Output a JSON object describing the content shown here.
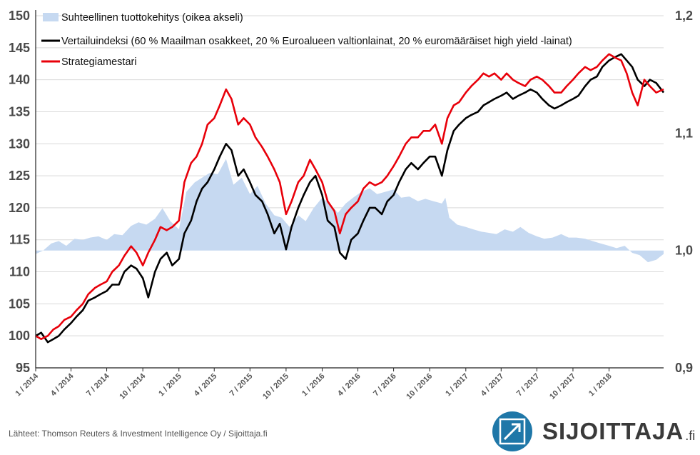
{
  "chart_data": {
    "type": "line",
    "title": "",
    "x_ticks": [
      "1 / 2014",
      "4 / 2014",
      "7 / 2014",
      "10 / 2014",
      "1 / 2015",
      "4 / 2015",
      "7 / 2015",
      "10 / 2015",
      "1 / 2016",
      "4 / 2016",
      "7 / 2016",
      "10 / 2016",
      "1 / 2017",
      "4 / 2017",
      "7 / 2017",
      "10 / 2017",
      "1 / 2018"
    ],
    "x_range": [
      "2014-01-01",
      "2018-05-20"
    ],
    "y_left": {
      "ticks": [
        "95",
        "100",
        "105",
        "110",
        "115",
        "120",
        "125",
        "130",
        "135",
        "140",
        "145",
        "150"
      ],
      "range": [
        95,
        150
      ]
    },
    "y_right": {
      "ticks": [
        "0,9",
        "1,0",
        "1,1",
        "1,2"
      ],
      "range": [
        0.9,
        1.2
      ]
    },
    "grid": "horizontal",
    "legend_position": "top-left",
    "series": [
      {
        "name": "Suhteellinen tuottokehitys (oikea akseli)",
        "kind": "area",
        "axis": "right",
        "color": "#c6d9f1",
        "x": [
          "2014-01-01",
          "2014-01-20",
          "2014-02-10",
          "2014-03-01",
          "2014-03-20",
          "2014-04-10",
          "2014-05-01",
          "2014-05-20",
          "2014-06-10",
          "2014-07-01",
          "2014-07-20",
          "2014-08-10",
          "2014-09-01",
          "2014-09-20",
          "2014-10-10",
          "2014-11-01",
          "2014-11-20",
          "2014-12-10",
          "2015-01-01",
          "2015-01-20",
          "2015-02-10",
          "2015-03-01",
          "2015-03-20",
          "2015-04-10",
          "2015-05-01",
          "2015-05-20",
          "2015-06-10",
          "2015-07-01",
          "2015-07-20",
          "2015-08-10",
          "2015-09-01",
          "2015-09-20",
          "2015-10-10",
          "2015-11-01",
          "2015-11-20",
          "2015-12-10",
          "2016-01-01",
          "2016-01-20",
          "2016-02-10",
          "2016-03-01",
          "2016-03-20",
          "2016-04-10",
          "2016-05-01",
          "2016-05-20",
          "2016-06-10",
          "2016-07-01",
          "2016-07-20",
          "2016-08-10",
          "2016-09-01",
          "2016-09-20",
          "2016-10-10",
          "2016-11-01",
          "2016-11-10",
          "2016-11-20",
          "2016-12-10",
          "2017-01-01",
          "2017-01-20",
          "2017-02-10",
          "2017-03-01",
          "2017-03-20",
          "2017-04-10",
          "2017-05-01",
          "2017-05-20",
          "2017-06-10",
          "2017-07-01",
          "2017-07-20",
          "2017-08-10",
          "2017-09-01",
          "2017-09-20",
          "2017-10-10",
          "2017-11-01",
          "2017-11-20",
          "2017-12-10",
          "2018-01-01",
          "2018-01-20",
          "2018-02-10",
          "2018-03-01",
          "2018-03-20",
          "2018-04-10",
          "2018-05-01",
          "2018-05-20"
        ],
        "values": [
          0.997,
          1.0,
          1.006,
          1.008,
          1.004,
          1.01,
          1.009,
          1.011,
          1.012,
          1.009,
          1.014,
          1.013,
          1.021,
          1.024,
          1.022,
          1.027,
          1.036,
          1.025,
          1.018,
          1.05,
          1.058,
          1.062,
          1.066,
          1.065,
          1.078,
          1.056,
          1.062,
          1.048,
          1.055,
          1.04,
          1.03,
          1.028,
          1.02,
          1.03,
          1.025,
          1.036,
          1.045,
          1.04,
          1.032,
          1.04,
          1.045,
          1.05,
          1.053,
          1.048,
          1.05,
          1.052,
          1.045,
          1.046,
          1.042,
          1.044,
          1.042,
          1.04,
          1.045,
          1.028,
          1.022,
          1.02,
          1.018,
          1.016,
          1.015,
          1.014,
          1.018,
          1.016,
          1.02,
          1.015,
          1.012,
          1.01,
          1.011,
          1.014,
          1.011,
          1.011,
          1.01,
          1.008,
          1.006,
          1.004,
          1.002,
          1.004,
          0.998,
          0.996,
          0.99,
          0.992,
          0.997
        ]
      },
      {
        "name": "Vertailuindeksi (60 % Maailman osakkeet, 20 % Euroalueen valtionlainat, 20 % euromääräiset high yield -lainat)",
        "kind": "line",
        "axis": "left",
        "color": "#000000",
        "x": [
          "2014-01-01",
          "2014-01-15",
          "2014-02-01",
          "2014-02-15",
          "2014-03-01",
          "2014-03-15",
          "2014-04-01",
          "2014-04-15",
          "2014-05-01",
          "2014-05-15",
          "2014-06-01",
          "2014-06-15",
          "2014-07-01",
          "2014-07-15",
          "2014-08-01",
          "2014-08-15",
          "2014-09-01",
          "2014-09-15",
          "2014-10-01",
          "2014-10-15",
          "2014-11-01",
          "2014-11-15",
          "2014-12-01",
          "2014-12-15",
          "2015-01-01",
          "2015-01-15",
          "2015-02-01",
          "2015-02-15",
          "2015-03-01",
          "2015-03-15",
          "2015-04-01",
          "2015-04-15",
          "2015-05-01",
          "2015-05-15",
          "2015-06-01",
          "2015-06-15",
          "2015-07-01",
          "2015-07-15",
          "2015-08-01",
          "2015-08-15",
          "2015-09-01",
          "2015-09-15",
          "2015-10-01",
          "2015-10-15",
          "2015-11-01",
          "2015-11-15",
          "2015-12-01",
          "2015-12-15",
          "2016-01-01",
          "2016-01-15",
          "2016-02-01",
          "2016-02-15",
          "2016-03-01",
          "2016-03-15",
          "2016-04-01",
          "2016-04-15",
          "2016-05-01",
          "2016-05-15",
          "2016-06-01",
          "2016-06-15",
          "2016-07-01",
          "2016-07-15",
          "2016-08-01",
          "2016-08-15",
          "2016-09-01",
          "2016-09-15",
          "2016-10-01",
          "2016-10-15",
          "2016-11-01",
          "2016-11-15",
          "2016-12-01",
          "2016-12-15",
          "2017-01-01",
          "2017-01-15",
          "2017-02-01",
          "2017-02-15",
          "2017-03-01",
          "2017-03-15",
          "2017-04-01",
          "2017-04-15",
          "2017-05-01",
          "2017-05-15",
          "2017-06-01",
          "2017-06-15",
          "2017-07-01",
          "2017-07-15",
          "2017-08-01",
          "2017-08-15",
          "2017-09-01",
          "2017-09-15",
          "2017-10-01",
          "2017-10-15",
          "2017-11-01",
          "2017-11-15",
          "2017-12-01",
          "2017-12-15",
          "2018-01-01",
          "2018-01-15",
          "2018-02-01",
          "2018-02-15",
          "2018-03-01",
          "2018-03-15",
          "2018-04-01",
          "2018-04-15",
          "2018-05-01",
          "2018-05-20"
        ],
        "values": [
          100,
          100.5,
          99.0,
          99.5,
          100,
          101,
          102,
          103,
          104,
          105.5,
          106,
          106.5,
          107,
          108,
          108,
          110,
          111,
          110.5,
          109,
          106,
          110,
          112,
          113,
          111,
          112,
          116,
          118,
          121,
          123,
          124,
          126,
          128,
          130,
          129,
          125,
          126,
          124,
          122,
          121,
          119,
          116,
          117.5,
          113.5,
          117,
          120,
          122,
          124,
          125,
          122,
          118,
          117,
          113,
          112,
          115,
          116,
          118,
          120,
          120,
          119,
          121,
          122,
          124,
          126,
          127,
          126,
          127,
          128,
          128,
          125,
          129,
          132,
          133,
          134,
          134.5,
          135,
          136,
          136.5,
          137,
          137.5,
          138,
          137,
          137.5,
          138,
          138.5,
          138,
          137,
          136,
          135.5,
          136,
          136.5,
          137,
          137.5,
          139,
          140,
          140.5,
          142,
          143,
          143.5,
          144,
          143,
          142,
          140,
          139,
          140,
          139.5,
          138
        ]
      },
      {
        "name": "Strategiamestari",
        "kind": "line",
        "axis": "left",
        "color": "#e8000a",
        "x": [
          "2014-01-01",
          "2014-01-15",
          "2014-02-01",
          "2014-02-15",
          "2014-03-01",
          "2014-03-15",
          "2014-04-01",
          "2014-04-15",
          "2014-05-01",
          "2014-05-15",
          "2014-06-01",
          "2014-06-15",
          "2014-07-01",
          "2014-07-15",
          "2014-08-01",
          "2014-08-15",
          "2014-09-01",
          "2014-09-15",
          "2014-10-01",
          "2014-10-15",
          "2014-11-01",
          "2014-11-15",
          "2014-12-01",
          "2014-12-15",
          "2015-01-01",
          "2015-01-15",
          "2015-02-01",
          "2015-02-15",
          "2015-03-01",
          "2015-03-15",
          "2015-04-01",
          "2015-04-15",
          "2015-05-01",
          "2015-05-15",
          "2015-06-01",
          "2015-06-15",
          "2015-07-01",
          "2015-07-15",
          "2015-08-01",
          "2015-08-15",
          "2015-09-01",
          "2015-09-15",
          "2015-10-01",
          "2015-10-15",
          "2015-11-01",
          "2015-11-15",
          "2015-12-01",
          "2015-12-15",
          "2016-01-01",
          "2016-01-15",
          "2016-02-01",
          "2016-02-15",
          "2016-03-01",
          "2016-03-15",
          "2016-04-01",
          "2016-04-15",
          "2016-05-01",
          "2016-05-15",
          "2016-06-01",
          "2016-06-15",
          "2016-07-01",
          "2016-07-15",
          "2016-08-01",
          "2016-08-15",
          "2016-09-01",
          "2016-09-15",
          "2016-10-01",
          "2016-10-15",
          "2016-11-01",
          "2016-11-15",
          "2016-12-01",
          "2016-12-15",
          "2017-01-01",
          "2017-01-15",
          "2017-02-01",
          "2017-02-15",
          "2017-03-01",
          "2017-03-15",
          "2017-04-01",
          "2017-04-15",
          "2017-05-01",
          "2017-05-15",
          "2017-06-01",
          "2017-06-15",
          "2017-07-01",
          "2017-07-15",
          "2017-08-01",
          "2017-08-15",
          "2017-09-01",
          "2017-09-15",
          "2017-10-01",
          "2017-10-15",
          "2017-11-01",
          "2017-11-15",
          "2017-12-01",
          "2017-12-15",
          "2018-01-01",
          "2018-01-15",
          "2018-02-01",
          "2018-02-15",
          "2018-03-01",
          "2018-03-15",
          "2018-04-01",
          "2018-04-15",
          "2018-05-01",
          "2018-05-20"
        ],
        "values": [
          100,
          99.5,
          100,
          101,
          101.5,
          102.5,
          103,
          104,
          105,
          106.5,
          107.5,
          108,
          108.5,
          110,
          111,
          112.5,
          114,
          113,
          111,
          113,
          115,
          117,
          116.5,
          117,
          118,
          124,
          127,
          128,
          130,
          133,
          134,
          136,
          138.5,
          137,
          133,
          134,
          133,
          131,
          129.5,
          128,
          126,
          124,
          119,
          121,
          124,
          125,
          127.5,
          126,
          124,
          121,
          119.5,
          116,
          119,
          120,
          121,
          123,
          124,
          123.5,
          124,
          125,
          126.5,
          128,
          130,
          131,
          131,
          132,
          132,
          133,
          130,
          134,
          136,
          136.5,
          138,
          139,
          140,
          141,
          140.5,
          141,
          140,
          141,
          140,
          139.5,
          139,
          140,
          140.5,
          140,
          139,
          138,
          138,
          139,
          140,
          141,
          142,
          141.5,
          142,
          143,
          144,
          143.5,
          143,
          141,
          138,
          136,
          140,
          139,
          138,
          138.5
        ]
      }
    ]
  },
  "legend": {
    "area_label": "Suhteellinen tuottokehitys (oikea akseli)",
    "black_label": "Vertailuindeksi (60 % Maailman osakkeet, 20 % Euroalueen valtionlainat, 20 % euromääräiset high yield -lainat)",
    "red_label": "Strategiamestari"
  },
  "footer": {
    "source": "Lähteet: Thomson Reuters & Investment Intelligence Oy / Sijoittaja.fi",
    "brand_name": "SIJOITTAJA",
    "brand_tld": ".fi"
  }
}
